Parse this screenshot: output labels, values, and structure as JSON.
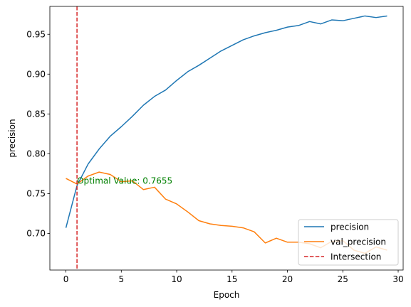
{
  "chart_data": {
    "type": "line",
    "title": "",
    "xlabel": "Epoch",
    "ylabel": "precision",
    "xlim": [
      -1.45,
      30.45
    ],
    "ylim": [
      0.654,
      0.985
    ],
    "xticks": [
      0,
      5,
      10,
      15,
      20,
      25,
      30
    ],
    "yticks": [
      0.7,
      0.75,
      0.8,
      0.85,
      0.9,
      0.95
    ],
    "grid": false,
    "legend_position": "lower right",
    "x": [
      0,
      1,
      2,
      3,
      4,
      5,
      6,
      7,
      8,
      9,
      10,
      11,
      12,
      13,
      14,
      15,
      16,
      17,
      18,
      19,
      20,
      21,
      22,
      23,
      24,
      25,
      26,
      27,
      28,
      29
    ],
    "series": [
      {
        "name": "precision",
        "color": "#1f77b4",
        "style": "solid",
        "values": [
          0.707,
          0.76,
          0.787,
          0.806,
          0.822,
          0.834,
          0.847,
          0.861,
          0.872,
          0.88,
          0.892,
          0.903,
          0.911,
          0.92,
          0.929,
          0.936,
          0.943,
          0.948,
          0.952,
          0.955,
          0.959,
          0.961,
          0.966,
          0.963,
          0.968,
          0.967,
          0.97,
          0.973,
          0.971,
          0.973
        ]
      },
      {
        "name": "val_precision",
        "color": "#ff7f0e",
        "style": "solid",
        "values": [
          0.769,
          0.762,
          0.772,
          0.777,
          0.774,
          0.765,
          0.766,
          0.755,
          0.758,
          0.743,
          0.737,
          0.727,
          0.716,
          0.712,
          0.71,
          0.709,
          0.707,
          0.702,
          0.688,
          0.694,
          0.689,
          0.689,
          0.687,
          0.682,
          0.69,
          0.691,
          0.679,
          0.675,
          0.683,
          0.679
        ]
      }
    ],
    "vline": {
      "name": "Intersection",
      "x": 1,
      "color": "#d62728",
      "style": "dashed"
    },
    "annotation": {
      "text": "Optimal Value: 0.7655",
      "x": 1,
      "y": 0.7655,
      "color": "#008000"
    }
  }
}
